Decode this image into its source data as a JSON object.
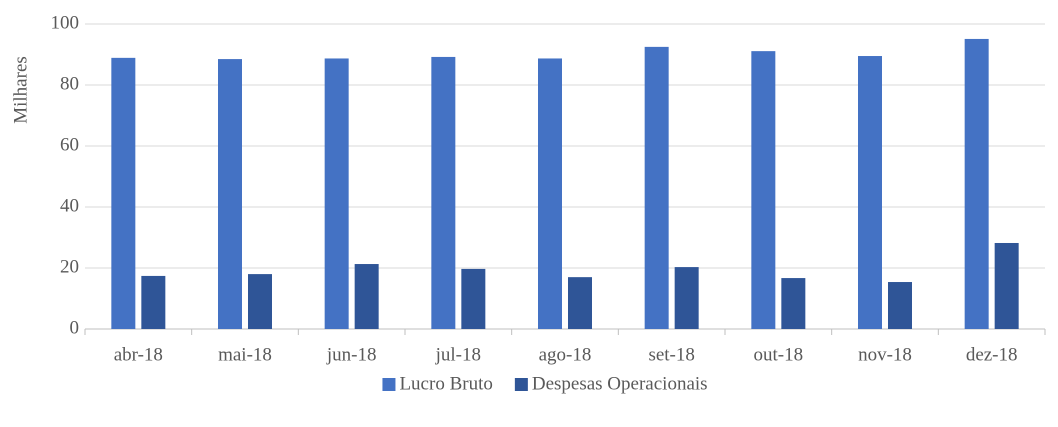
{
  "chart_data": {
    "type": "bar",
    "y_label": "Milhares",
    "categories": [
      "abr-18",
      "mai-18",
      "jun-18",
      "jul-18",
      "ago-18",
      "set-18",
      "out-18",
      "nov-18",
      "dez-18"
    ],
    "series": [
      {
        "name": "Lucro Bruto",
        "color": "#4472c4",
        "values": [
          88.9,
          88.5,
          88.7,
          89.2,
          88.7,
          92.5,
          91.1,
          89.5,
          95.1
        ]
      },
      {
        "name": "Despesas Operacionais",
        "color": "#2f5597",
        "values": [
          17.4,
          18.0,
          21.3,
          19.7,
          17.0,
          20.3,
          16.7,
          15.4,
          28.2
        ]
      }
    ],
    "ylim": [
      0,
      100
    ],
    "yticks": [
      0,
      20,
      40,
      60,
      80,
      100
    ],
    "grid": true,
    "legend": "bottom"
  }
}
